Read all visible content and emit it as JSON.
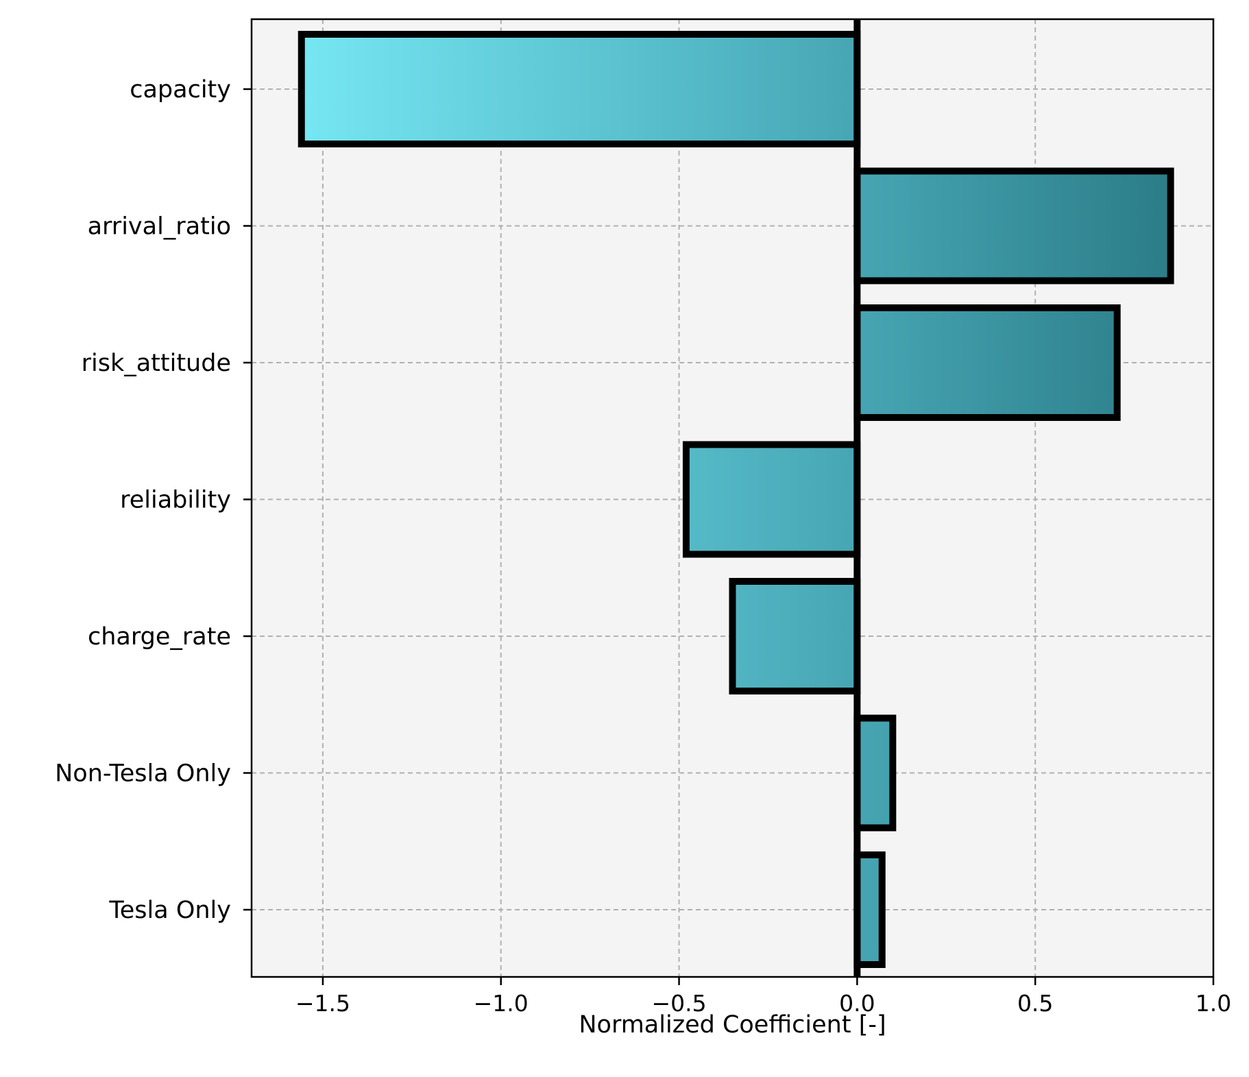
{
  "chart_data": {
    "type": "bar",
    "orientation": "horizontal",
    "title": "",
    "xlabel": "Normalized Coefficient [-]",
    "ylabel": "",
    "categories": [
      "capacity",
      "arrival_ratio",
      "risk_attitude",
      "reliability",
      "charge_rate",
      "Non-Tesla Only",
      "Tesla Only"
    ],
    "values": [
      -1.56,
      0.88,
      0.73,
      -0.48,
      -0.35,
      0.1,
      0.07
    ],
    "xlim": [
      -1.7,
      1.0
    ],
    "xticks": [
      -1.5,
      -1.0,
      -0.5,
      0.0,
      0.5,
      1.0
    ],
    "xtick_labels": [
      "−1.5",
      "−1.0",
      "−0.5",
      "0.0",
      "0.5",
      "1.0"
    ],
    "grid": true,
    "legend": "none"
  },
  "colors": {
    "background": "#f4f4f4",
    "bar_gradient_left": "#76e7f3",
    "bar_gradient_mid": "#4aaab8",
    "bar_gradient_right": "#2b7d88",
    "bar_edge": "#000000",
    "grid": "#b0b0b0",
    "zero_line": "#000000"
  }
}
